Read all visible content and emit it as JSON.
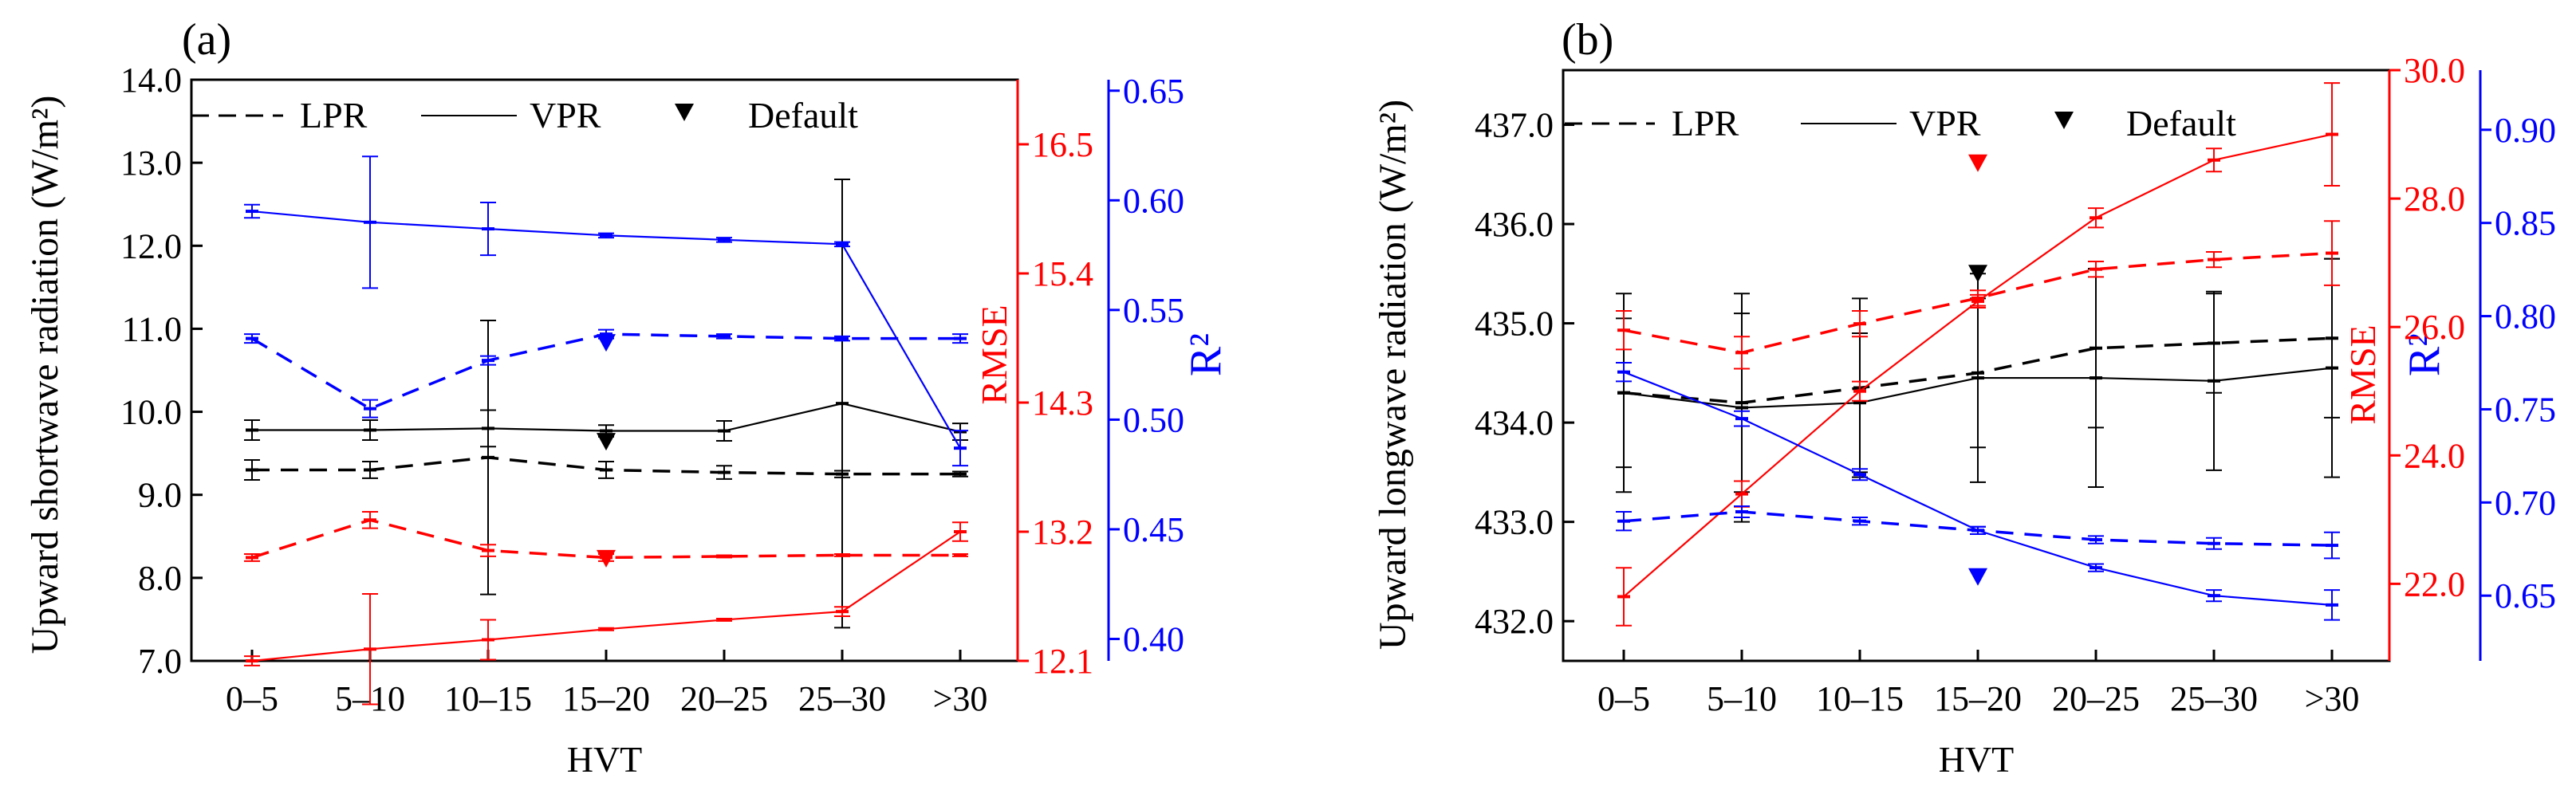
{
  "figure": {
    "x_categories": [
      "0–5",
      "5–10",
      "10–15",
      "15–20",
      "20–25",
      "25–30",
      ">30"
    ],
    "colors": {
      "black": "#000000",
      "red": "#ff0000",
      "blue": "#0000ff"
    }
  },
  "chart_data": [
    {
      "type": "line",
      "panel_label": "(a)",
      "xlabel": "HVT",
      "ylabel_left": "Upward shortwave radiation (W/m²)",
      "ylabel_mid": "RMSE",
      "ylabel_right": "R²",
      "legend": {
        "placement": "top-left",
        "entries": [
          "LPR",
          "VPR",
          "Default"
        ]
      },
      "categories": [
        "0–5",
        "5–10",
        "10–15",
        "15–20",
        "20–25",
        "25–30",
        ">30"
      ],
      "axes": {
        "left": {
          "range": [
            7.0,
            14.0
          ],
          "ticks": [
            "7.0",
            "8.0",
            "9.0",
            "10.0",
            "11.0",
            "12.0",
            "13.0",
            "14.0"
          ],
          "tick_values": [
            7,
            8,
            9,
            10,
            11,
            12,
            13,
            14
          ],
          "color": "#000000"
        },
        "mid": {
          "range": [
            12.1,
            17.05
          ],
          "ticks": [
            "12.1",
            "13.2",
            "14.3",
            "15.4",
            "16.5"
          ],
          "tick_values": [
            12.1,
            13.2,
            14.3,
            15.4,
            16.5
          ],
          "color": "#ff0000"
        },
        "right": {
          "range": [
            0.39,
            0.655
          ],
          "ticks": [
            "0.40",
            "0.45",
            "0.50",
            "0.55",
            "0.60",
            "0.65"
          ],
          "tick_values": [
            0.4,
            0.45,
            0.5,
            0.55,
            0.6,
            0.65
          ],
          "color": "#0000ff"
        }
      },
      "series": [
        {
          "name": "LPR",
          "axis": "left",
          "style": "dashed",
          "color": "#000000",
          "values": [
            9.3,
            9.3,
            9.45,
            9.3,
            9.27,
            9.25,
            9.25
          ],
          "errors": [
            0.12,
            0.1,
            1.65,
            0.1,
            0.08,
            0.04,
            0.03
          ]
        },
        {
          "name": "VPR",
          "axis": "left",
          "style": "solid",
          "color": "#000000",
          "values": [
            9.78,
            9.78,
            9.8,
            9.77,
            9.77,
            10.1,
            9.76
          ],
          "errors": [
            0.12,
            0.12,
            0.22,
            0.07,
            0.12,
            2.7,
            0.1
          ]
        },
        {
          "name": "Default",
          "axis": "left",
          "style": "marker",
          "color": "#000000",
          "values": [
            null,
            null,
            null,
            9.64,
            null,
            null,
            null
          ]
        },
        {
          "name": "LPR RMSE",
          "axis": "mid",
          "style": "dashed",
          "color": "#ff0000",
          "values": [
            12.98,
            13.3,
            13.04,
            12.98,
            12.99,
            13.0,
            13.0
          ],
          "errors": [
            0.03,
            0.07,
            0.05,
            0.03,
            0.01,
            0.01,
            0.01
          ]
        },
        {
          "name": "VPR RMSE",
          "axis": "mid",
          "style": "solid",
          "color": "#ff0000",
          "values": [
            12.1,
            12.2,
            12.28,
            12.37,
            12.45,
            12.52,
            13.2
          ],
          "errors": [
            0.04,
            0.47,
            0.17,
            0.01,
            0.01,
            0.04,
            0.08
          ]
        },
        {
          "name": "Default RMSE",
          "axis": "mid",
          "style": "marker",
          "color": "#ff0000",
          "values": [
            null,
            null,
            null,
            12.97,
            null,
            null,
            null
          ]
        },
        {
          "name": "LPR R²",
          "axis": "right",
          "style": "dashed",
          "color": "#0000ff",
          "values": [
            0.537,
            0.505,
            0.527,
            0.539,
            0.538,
            0.537,
            0.537
          ],
          "errors": [
            0.002,
            0.004,
            0.002,
            0.002,
            0.001,
            0.001,
            0.002
          ]
        },
        {
          "name": "VPR R²",
          "axis": "right",
          "style": "solid",
          "color": "#0000ff",
          "values": [
            0.595,
            0.59,
            0.587,
            0.584,
            0.582,
            0.58,
            0.487
          ],
          "errors": [
            0.003,
            0.03,
            0.012,
            0.001,
            0.001,
            0.001,
            0.008
          ]
        },
        {
          "name": "Default R²",
          "axis": "right",
          "style": "marker",
          "color": "#0000ff",
          "values": [
            null,
            null,
            null,
            0.535,
            null,
            null,
            null
          ]
        }
      ]
    },
    {
      "type": "line",
      "panel_label": "(b)",
      "xlabel": "HVT",
      "ylabel_left": "Upward longwave radiation (W/m²)",
      "ylabel_mid": "RMSE",
      "ylabel_right": "R²",
      "legend": {
        "placement": "top-left",
        "entries": [
          "LPR",
          "VPR",
          "Default"
        ]
      },
      "categories": [
        "0–5",
        "5–10",
        "10–15",
        "15–20",
        "20–25",
        "25–30",
        ">30"
      ],
      "axes": {
        "left": {
          "range": [
            431.6,
            437.55
          ],
          "ticks": [
            "432.0",
            "433.0",
            "434.0",
            "435.0",
            "436.0",
            "437.0"
          ],
          "tick_values": [
            432,
            433,
            434,
            435,
            436,
            437
          ],
          "color": "#000000"
        },
        "mid": {
          "range": [
            20.8,
            30.0
          ],
          "ticks": [
            "22.0",
            "24.0",
            "26.0",
            "28.0",
            "30.0"
          ],
          "tick_values": [
            22,
            24,
            26,
            28,
            30
          ],
          "color": "#ff0000"
        },
        "right": {
          "range": [
            0.615,
            0.932
          ],
          "ticks": [
            "0.65",
            "0.70",
            "0.75",
            "0.80",
            "0.85",
            "0.90"
          ],
          "tick_values": [
            0.65,
            0.7,
            0.75,
            0.8,
            0.85,
            0.9
          ],
          "color": "#0000ff"
        }
      },
      "series": [
        {
          "name": "LPR",
          "axis": "left",
          "style": "dashed",
          "color": "#000000",
          "values": [
            434.3,
            434.2,
            434.35,
            434.5,
            434.75,
            434.8,
            434.85
          ],
          "errors": [
            0.75,
            0.9,
            0.9,
            0.75,
            0.8,
            0.5,
            0.8
          ]
        },
        {
          "name": "VPR",
          "axis": "left",
          "style": "solid",
          "color": "#000000",
          "values": [
            434.3,
            434.15,
            434.2,
            434.45,
            434.45,
            434.42,
            434.55
          ],
          "errors": [
            1.0,
            1.15,
            0.7,
            1.05,
            1.1,
            0.9,
            1.1
          ]
        },
        {
          "name": "Default",
          "axis": "left",
          "style": "marker",
          "color": "#000000",
          "values": [
            null,
            null,
            null,
            435.5,
            null,
            null,
            null
          ]
        },
        {
          "name": "LPR RMSE",
          "axis": "mid",
          "style": "dashed",
          "color": "#ff0000",
          "values": [
            25.95,
            25.6,
            26.05,
            26.45,
            26.9,
            27.05,
            27.15
          ],
          "errors": [
            0.3,
            0.25,
            0.2,
            0.12,
            0.12,
            0.12,
            0.5
          ]
        },
        {
          "name": "VPR RMSE",
          "axis": "mid",
          "style": "solid",
          "color": "#ff0000",
          "values": [
            21.8,
            23.4,
            25.0,
            26.4,
            27.7,
            28.6,
            29.0
          ],
          "errors": [
            0.45,
            0.2,
            0.15,
            0.1,
            0.15,
            0.18,
            0.8
          ]
        },
        {
          "name": "Default RMSE",
          "axis": "mid",
          "style": "marker",
          "color": "#ff0000",
          "values": [
            null,
            null,
            null,
            28.55,
            null,
            null,
            null
          ]
        },
        {
          "name": "LPR R²",
          "axis": "right",
          "style": "dashed",
          "color": "#0000ff",
          "values": [
            0.69,
            0.695,
            0.69,
            0.685,
            0.68,
            0.678,
            0.677
          ],
          "errors": [
            0.005,
            0.003,
            0.002,
            0.002,
            0.002,
            0.003,
            0.007
          ]
        },
        {
          "name": "VPR R²",
          "axis": "right",
          "style": "solid",
          "color": "#0000ff",
          "values": [
            0.77,
            0.745,
            0.715,
            0.685,
            0.665,
            0.65,
            0.645
          ],
          "errors": [
            0.005,
            0.004,
            0.003,
            0.002,
            0.002,
            0.003,
            0.008
          ]
        },
        {
          "name": "Default R²",
          "axis": "right",
          "style": "marker",
          "color": "#0000ff",
          "values": [
            null,
            null,
            null,
            0.66,
            null,
            null,
            null
          ]
        }
      ]
    }
  ]
}
